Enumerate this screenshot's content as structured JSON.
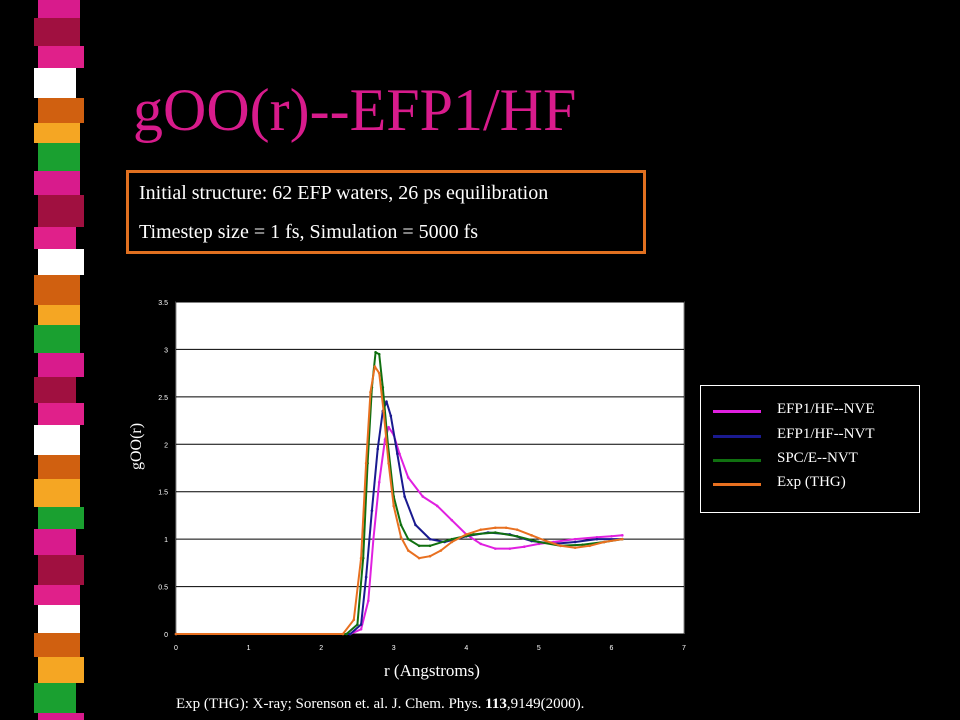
{
  "slide": {
    "title": "gOO(r)--EFP1/HF",
    "info": [
      "Initial structure: 62 EFP waters, 26 ps equilibration",
      "Timestep size = 1 fs, Simulation = 5000 fs"
    ],
    "footnote_prefix": "Exp (THG):  X-ray; Sorenson et. al. J. Chem. Phys. ",
    "footnote_volume": "113",
    "footnote_suffix": ",9149(2000).",
    "colors": {
      "title": "#d81b8c",
      "box_border": "#e07020",
      "background": "#000000"
    }
  },
  "chart_data": {
    "type": "line",
    "xlabel": "r (Angstroms)",
    "ylabel": "gOO(r)",
    "xlim": [
      0,
      7
    ],
    "ylim": [
      0,
      3.5
    ],
    "xticks": [
      "0",
      "1",
      "2",
      "3",
      "4",
      "5",
      "6",
      "7"
    ],
    "yticks": [
      "0",
      "0.5",
      "1",
      "1.5",
      "2",
      "2.5",
      "3",
      "3.5"
    ],
    "grid": "horizontal",
    "legend_position": "right",
    "series": [
      {
        "name": "EFP1/HF--NVE",
        "color": "#e020e0",
        "x": [
          0,
          2.4,
          2.55,
          2.65,
          2.72,
          2.8,
          2.88,
          2.93,
          3.0,
          3.08,
          3.2,
          3.4,
          3.6,
          3.8,
          4.0,
          4.2,
          4.4,
          4.6,
          4.8,
          5.0,
          5.2,
          5.5,
          5.8,
          6.0,
          6.15
        ],
        "y": [
          0,
          0,
          0.05,
          0.35,
          1.0,
          1.6,
          2.05,
          2.18,
          2.1,
          1.9,
          1.65,
          1.45,
          1.35,
          1.2,
          1.05,
          0.95,
          0.9,
          0.9,
          0.92,
          0.95,
          0.97,
          1.0,
          1.02,
          1.03,
          1.04
        ]
      },
      {
        "name": "EFP1/HF--NVT",
        "color": "#1a1a90",
        "x": [
          0,
          2.4,
          2.55,
          2.62,
          2.7,
          2.78,
          2.85,
          2.9,
          2.96,
          3.05,
          3.15,
          3.3,
          3.5,
          3.7,
          4.0,
          4.3,
          4.6,
          4.9,
          5.2,
          5.5,
          5.8,
          6.15
        ],
        "y": [
          0,
          0,
          0.1,
          0.6,
          1.3,
          1.95,
          2.35,
          2.45,
          2.3,
          1.9,
          1.45,
          1.15,
          1.0,
          0.97,
          1.03,
          1.07,
          1.05,
          0.98,
          0.95,
          0.97,
          1.0,
          1.0
        ]
      },
      {
        "name": "SPC/E--NVT",
        "color": "#107010",
        "x": [
          0,
          2.35,
          2.5,
          2.58,
          2.64,
          2.7,
          2.75,
          2.8,
          2.85,
          2.92,
          3.0,
          3.1,
          3.2,
          3.35,
          3.5,
          3.8,
          4.1,
          4.4,
          4.7,
          5.0,
          5.3,
          5.6,
          5.9,
          6.15
        ],
        "y": [
          0,
          0,
          0.1,
          0.8,
          1.8,
          2.6,
          2.97,
          2.95,
          2.6,
          2.0,
          1.45,
          1.15,
          1.0,
          0.93,
          0.93,
          1.0,
          1.05,
          1.07,
          1.03,
          0.97,
          0.93,
          0.94,
          0.97,
          1.0
        ]
      },
      {
        "name": "Exp (THG)",
        "color": "#e87020",
        "x": [
          0,
          2.3,
          2.45,
          2.55,
          2.62,
          2.68,
          2.74,
          2.8,
          2.86,
          2.93,
          3.0,
          3.1,
          3.2,
          3.35,
          3.5,
          3.65,
          3.8,
          4.0,
          4.2,
          4.4,
          4.55,
          4.7,
          4.9,
          5.1,
          5.3,
          5.5,
          5.7,
          5.9,
          6.15
        ],
        "y": [
          0,
          0,
          0.15,
          0.8,
          1.8,
          2.55,
          2.82,
          2.75,
          2.35,
          1.8,
          1.35,
          1.02,
          0.88,
          0.8,
          0.82,
          0.88,
          0.97,
          1.05,
          1.1,
          1.12,
          1.12,
          1.1,
          1.04,
          0.98,
          0.93,
          0.91,
          0.93,
          0.97,
          1.0
        ]
      }
    ]
  }
}
